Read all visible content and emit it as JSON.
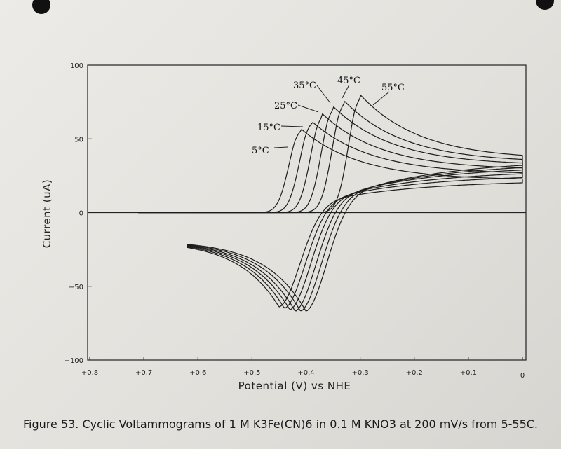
{
  "chart_data": {
    "type": "line",
    "title": "",
    "xlabel": "Potential (V) vs NHE",
    "ylabel": "Current (uA)",
    "xlim": [
      0.8,
      0.0
    ],
    "ylim": [
      -100,
      100
    ],
    "x_ticks": [
      0.8,
      0.7,
      0.6,
      0.5,
      0.4,
      0.3,
      0.2,
      0.1,
      0.0
    ],
    "x_tick_labels": [
      "+0.8",
      "+0.7",
      "+0.6",
      "+0.5",
      "+0.4",
      "+0.3",
      "+0.2",
      "+0.1",
      "0"
    ],
    "y_ticks": [
      100,
      50,
      0,
      -50,
      -100
    ],
    "y_tick_labels": [
      "100",
      "50",
      "0",
      "−50",
      "−100"
    ],
    "zero_line": true,
    "grid": false,
    "legend": "none",
    "annotations": [
      "5°C",
      "15°C",
      "25°C",
      "35°C",
      "45°C",
      "55°C"
    ],
    "series": [
      {
        "anodic_peak": {
          "x": 0.41,
          "y": 57
        },
        "cathodic_peak": {
          "x": 0.45,
          "y": -64
        },
        "end_current": 22
      },
      {
        "anodic_peak": {
          "x": 0.39,
          "y": 62
        },
        "cathodic_peak": {
          "x": 0.44,
          "y": -65
        },
        "end_current": 26
      },
      {
        "anodic_peak": {
          "x": 0.37,
          "y": 67
        },
        "cathodic_peak": {
          "x": 0.43,
          "y": -66
        },
        "end_current": 29
      },
      {
        "anodic_peak": {
          "x": 0.35,
          "y": 72
        },
        "cathodic_peak": {
          "x": 0.42,
          "y": -67
        },
        "end_current": 32
      },
      {
        "anodic_peak": {
          "x": 0.33,
          "y": 76
        },
        "cathodic_peak": {
          "x": 0.41,
          "y": -67
        },
        "end_current": 34
      },
      {
        "anodic_peak": {
          "x": 0.3,
          "y": 80
        },
        "cathodic_peak": {
          "x": 0.4,
          "y": -67
        },
        "end_current": 36
      }
    ]
  },
  "caption": "Figure 53. Cyclic Voltammograms of 1 M K3Fe(CN)6 in 0.1 M KNO3 at 200 mV/s from 5-55C."
}
